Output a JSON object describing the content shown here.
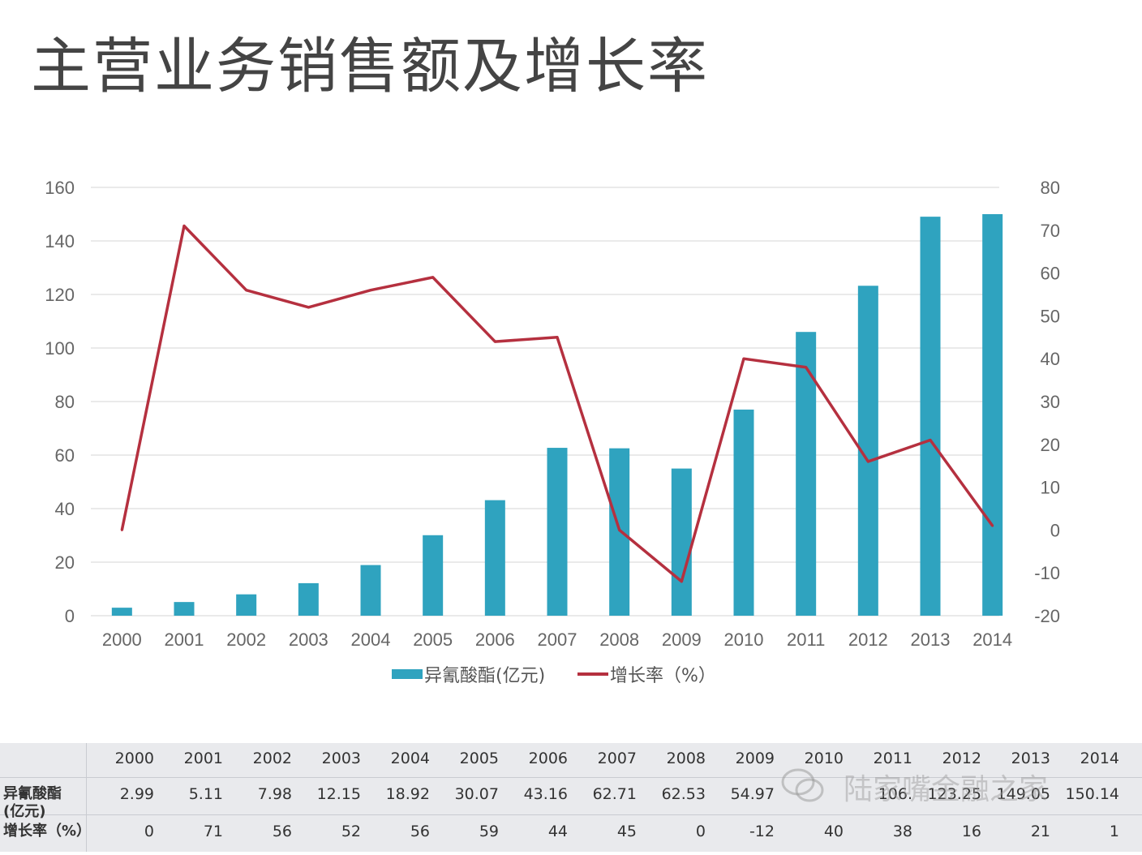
{
  "title": "主营业务销售额及增长率",
  "chart_data": {
    "type": "bar",
    "categories": [
      "2000",
      "2001",
      "2002",
      "2003",
      "2004",
      "2005",
      "2006",
      "2007",
      "2008",
      "2009",
      "2010",
      "2011",
      "2012",
      "2013",
      "2014"
    ],
    "series": [
      {
        "name": "异氰酸酯(亿元)",
        "type": "bar",
        "axis": "left",
        "color": "#2fa3bf",
        "values": [
          2.99,
          5.11,
          7.98,
          12.15,
          18.92,
          30.07,
          43.16,
          62.71,
          62.53,
          54.97,
          77,
          106,
          123.25,
          149.05,
          150
        ]
      },
      {
        "name": "增长率（%）",
        "type": "line",
        "axis": "right",
        "color": "#b5303f",
        "values": [
          0,
          71,
          56,
          52,
          56,
          59,
          44,
          45,
          0,
          -12,
          40,
          38,
          16,
          21,
          1
        ]
      }
    ],
    "y_left": {
      "min": 0,
      "max": 160,
      "ticks": [
        "0",
        "20",
        "40",
        "60",
        "80",
        "100",
        "120",
        "140",
        "160"
      ]
    },
    "y_right": {
      "min": -20,
      "max": 80,
      "ticks": [
        "-20",
        "-10",
        "0",
        "10",
        "20",
        "30",
        "40",
        "50",
        "60",
        "70",
        "80"
      ]
    },
    "grid": true,
    "legend": "bottom"
  },
  "table": {
    "header_row": [
      "2000",
      "2001",
      "2002",
      "2003",
      "2004",
      "2005",
      "2006",
      "2007",
      "2008",
      "2009",
      "2010",
      "2011",
      "2012",
      "2013",
      "2014"
    ],
    "rows": [
      {
        "label_line1": "异氰酸酯",
        "label_line2": "(亿元)",
        "values": [
          "2.99",
          "5.11",
          "7.98",
          "12.15",
          "18.92",
          "30.07",
          "43.16",
          "62.71",
          "62.53",
          "54.97",
          "",
          "106.",
          "123.25",
          "149.05",
          "150.14"
        ]
      },
      {
        "label_line1": "增长率（%）",
        "label_line2": "",
        "values": [
          "0",
          "71",
          "56",
          "52",
          "56",
          "59",
          "44",
          "45",
          "0",
          "-12",
          "40",
          "38",
          "16",
          "21",
          "1"
        ]
      }
    ]
  },
  "watermark": "陆家嘴金融之家"
}
